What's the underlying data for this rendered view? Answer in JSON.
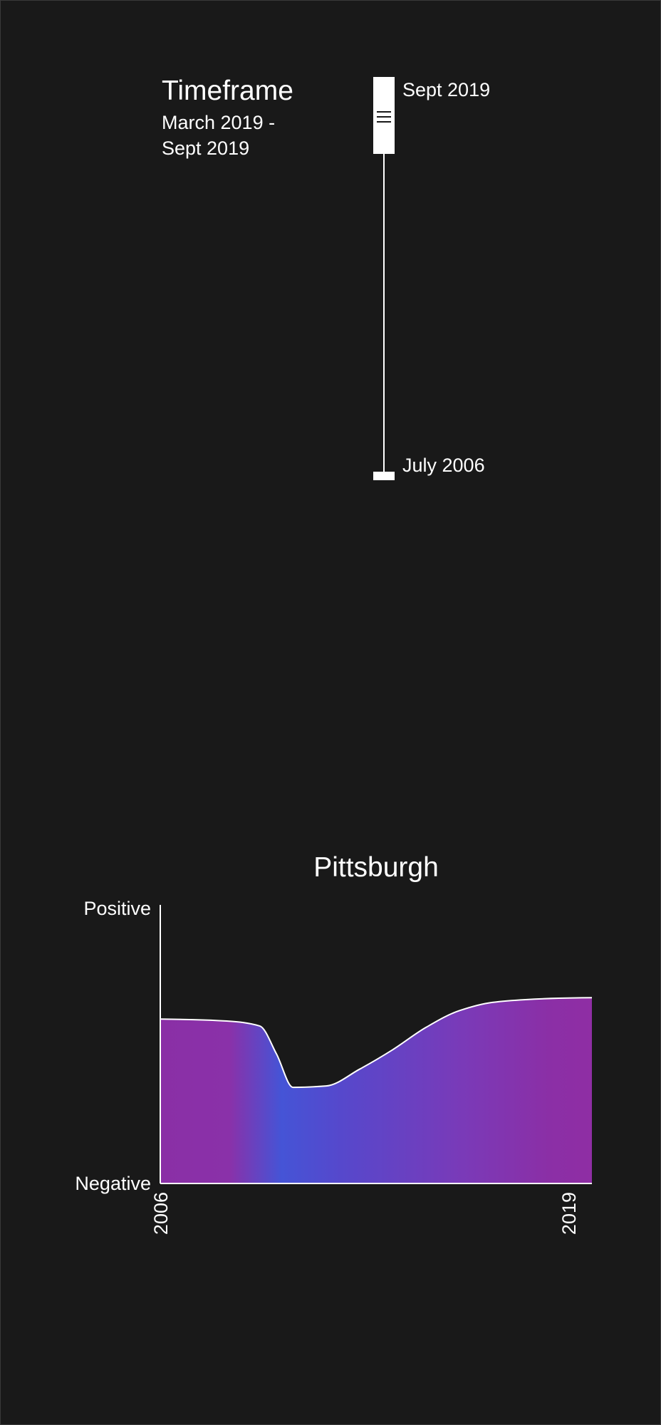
{
  "timeframe": {
    "title": "Timeframe",
    "range_label": "March 2019 - Sept 2019"
  },
  "slider": {
    "top_label": "Sept 2019",
    "bottom_label": "July 2006"
  },
  "colors": {
    "background": "#191919",
    "foreground": "#ffffff",
    "gradient_purple": "#8a2fa6",
    "gradient_blue": "#4554d6"
  },
  "chart_data": {
    "type": "area",
    "title": "Pittsburgh",
    "xlabel": "",
    "ylabel": "",
    "x_ticks": [
      "2006",
      "2019"
    ],
    "y_ticks": [
      "Positive",
      "Negative"
    ],
    "xlim": [
      2006,
      2019
    ],
    "ylim": [
      0,
      1
    ],
    "grid": false,
    "x": [
      2006,
      2007,
      2008,
      2009,
      2009.5,
      2010,
      2011,
      2012,
      2013,
      2014,
      2015,
      2016,
      2017,
      2018,
      2019
    ],
    "values": [
      0.59,
      0.588,
      0.583,
      0.565,
      0.465,
      0.345,
      0.35,
      0.41,
      0.48,
      0.56,
      0.62,
      0.65,
      0.66,
      0.665,
      0.667
    ]
  }
}
